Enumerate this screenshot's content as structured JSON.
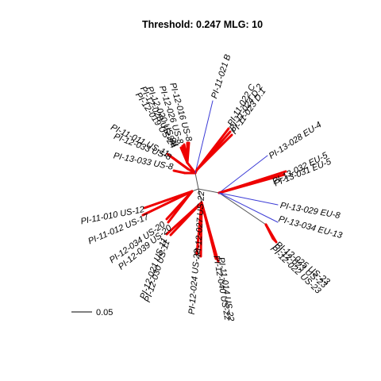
{
  "title": "Threshold: 0.247 MLG: 10",
  "scale_bar": {
    "label": "0.05",
    "color": "#000000"
  },
  "colors": {
    "clone": "#ee0000",
    "link": "#3b3bd6",
    "backbone": "#555555"
  },
  "tips": [
    {
      "label": "PI-11-021 B",
      "color": "#3b3bd6"
    },
    {
      "label": "PI-11-022 C",
      "color": "#ee0000"
    },
    {
      "label": "PI-11-024 D.2",
      "color": "#ee0000"
    },
    {
      "label": "PI-11-023 D.1",
      "color": "#ee0000"
    },
    {
      "label": "PI-12-016 US-8",
      "color": "#ee0000"
    },
    {
      "label": "PI-12-026 US-8",
      "color": "#ee0000"
    },
    {
      "label": "PI-12-020 US-24",
      "color": "#ee0000"
    },
    {
      "label": "PI-12-028 US-24",
      "color": "#ee0000"
    },
    {
      "label": "PI-12-019 US-24",
      "color": "#ee0000"
    },
    {
      "label": "PI-11-011 US-11",
      "color": "#ee0000"
    },
    {
      "label": "PI-12-033 US-8",
      "color": "#ee0000"
    },
    {
      "label": "PI-13-033 US-8",
      "color": "#ee0000"
    },
    {
      "label": "PI-13-028 EU-4",
      "color": "#3b3bd6"
    },
    {
      "label": "PI-13-032 EU-5",
      "color": "#ee0000"
    },
    {
      "label": "PI-13-031 EU-5",
      "color": "#ee0000"
    },
    {
      "label": "PI-13-029 EU-8",
      "color": "#3b3bd6"
    },
    {
      "label": "PI-13-034 EU-13",
      "color": "#3b3bd6"
    },
    {
      "label": "PI-12-025 US-23",
      "color": "#ee0000"
    },
    {
      "label": "PI-12-023 US-23",
      "color": "#ee0000"
    },
    {
      "label": "PI-12-022 US-23",
      "color": "#ee0000"
    },
    {
      "label": "PI-11-010 US-12",
      "color": "#ee0000"
    },
    {
      "label": "PI-11-012 US-17",
      "color": "#ee0000"
    },
    {
      "label": "PI-12-034 US-20",
      "color": "#ee0000"
    },
    {
      "label": "PI-12-039 US-20",
      "color": "#ee0000"
    },
    {
      "label": "PI-12-021 US-11",
      "color": "#ee0000"
    },
    {
      "label": "PI-12-030 US-11",
      "color": "#ee0000"
    },
    {
      "label": "PI-12-024 US-22",
      "color": "#ee0000"
    },
    {
      "label": "PI-12-027 US-22",
      "color": "#ee0000"
    },
    {
      "label": "PI-12-040 US-22",
      "color": "#ee0000"
    },
    {
      "label": "PI-11-014 US-22",
      "color": "#ee0000"
    }
  ]
}
